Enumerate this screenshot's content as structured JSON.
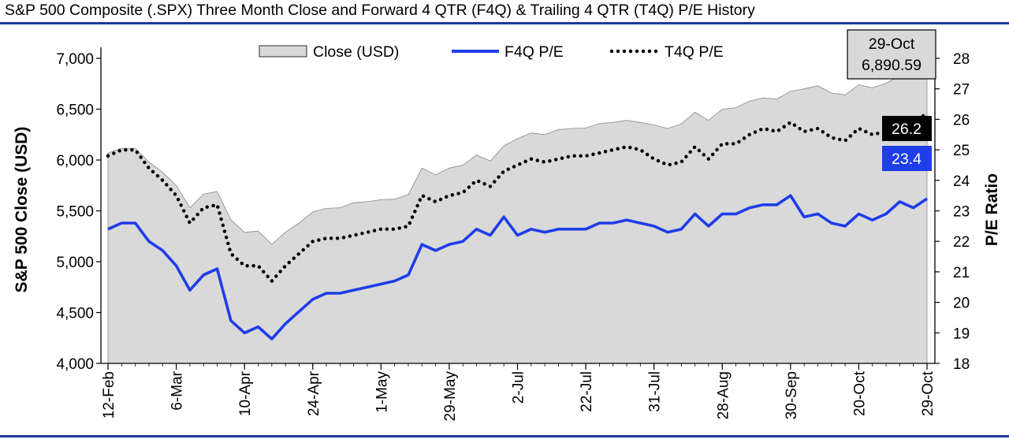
{
  "title": "S&P 500 Composite (.SPX) Three Month Close and Forward 4 QTR (F4Q) & Trailing 4 QTR (T4Q) P/E History",
  "colors": {
    "rule": "#1a3a9c",
    "area": "#d9d9d9",
    "f4q": "#1f3de8",
    "t4q": "#000000",
    "close_box": "#d9d9d9",
    "t4q_box": "#000000",
    "f4q_box": "#1f3de8"
  },
  "chart_data": {
    "type": "area",
    "title": "S&P 500 Composite (.SPX) Three Month Close and Forward 4 QTR (F4Q) & Trailing 4 QTR (T4Q) P/E History",
    "ylabel_left": "S&P 500 Close (USD)",
    "ylabel_right": "P/E Ratio",
    "ylim_left": [
      4000,
      7000
    ],
    "ylim_right": [
      18,
      28
    ],
    "yticks_left": [
      "4,000",
      "4,500",
      "5,000",
      "5,500",
      "6,000",
      "6,500",
      "7,000"
    ],
    "yticks_right": [
      "18",
      "19",
      "20",
      "21",
      "22",
      "23",
      "24",
      "25",
      "26",
      "27",
      "28"
    ],
    "xtick_labels": [
      "12-Feb",
      "6-Mar",
      "10-Apr",
      "24-Apr",
      "1-May",
      "29-May",
      "2-Jul",
      "22-Jul",
      "31-Jul",
      "28-Aug",
      "30-Sep",
      "20-Oct",
      "29-Oct"
    ],
    "legend": {
      "placement": "top-center",
      "entries": [
        "Close (USD)",
        "F4Q P/E",
        "T4Q P/E"
      ]
    },
    "grid": false,
    "series": [
      {
        "name": "Close (USD)",
        "axis": "left",
        "style": "area",
        "values": [
          6070,
          6115,
          6115,
          5980,
          5880,
          5750,
          5530,
          5665,
          5690,
          5410,
          5290,
          5300,
          5170,
          5290,
          5380,
          5490,
          5525,
          5530,
          5580,
          5590,
          5610,
          5615,
          5660,
          5920,
          5855,
          5920,
          5950,
          6050,
          5990,
          6140,
          6210,
          6265,
          6250,
          6300,
          6310,
          6315,
          6360,
          6370,
          6390,
          6370,
          6345,
          6310,
          6355,
          6470,
          6390,
          6500,
          6515,
          6580,
          6610,
          6600,
          6675,
          6700,
          6730,
          6660,
          6640,
          6740,
          6710,
          6755,
          6830,
          6880,
          6891
        ]
      },
      {
        "name": "F4Q P/E",
        "axis": "right",
        "style": "line",
        "values": [
          22.4,
          22.6,
          22.6,
          22.0,
          21.7,
          21.2,
          20.4,
          20.9,
          21.1,
          19.4,
          19.0,
          19.2,
          18.8,
          19.3,
          19.7,
          20.1,
          20.3,
          20.3,
          20.4,
          20.5,
          20.6,
          20.7,
          20.9,
          21.9,
          21.7,
          21.9,
          22.0,
          22.4,
          22.2,
          22.8,
          22.2,
          22.4,
          22.3,
          22.4,
          22.4,
          22.4,
          22.6,
          22.6,
          22.7,
          22.6,
          22.5,
          22.3,
          22.4,
          22.9,
          22.5,
          22.9,
          22.9,
          23.1,
          23.2,
          23.2,
          23.5,
          22.8,
          22.9,
          22.6,
          22.5,
          22.9,
          22.7,
          22.9,
          23.3,
          23.1,
          23.4
        ]
      },
      {
        "name": "T4Q P/E",
        "axis": "right",
        "style": "dotted",
        "values": [
          24.8,
          25.0,
          25.0,
          24.4,
          24.0,
          23.5,
          22.6,
          23.1,
          23.2,
          21.6,
          21.2,
          21.2,
          20.7,
          21.2,
          21.6,
          22.0,
          22.1,
          22.1,
          22.2,
          22.3,
          22.4,
          22.4,
          22.5,
          23.5,
          23.3,
          23.5,
          23.6,
          24.0,
          23.8,
          24.3,
          24.5,
          24.7,
          24.6,
          24.7,
          24.8,
          24.8,
          24.9,
          25.0,
          25.1,
          25.0,
          24.7,
          24.5,
          24.6,
          25.1,
          24.7,
          25.2,
          25.2,
          25.5,
          25.7,
          25.6,
          25.9,
          25.6,
          25.7,
          25.4,
          25.3,
          25.7,
          25.5,
          25.6,
          25.9,
          25.9,
          26.2
        ]
      }
    ],
    "annotations": {
      "close_label_date": "29-Oct",
      "close_label_value": "6,890.59",
      "t4q_last": "26.2",
      "f4q_last": "23.4"
    }
  }
}
